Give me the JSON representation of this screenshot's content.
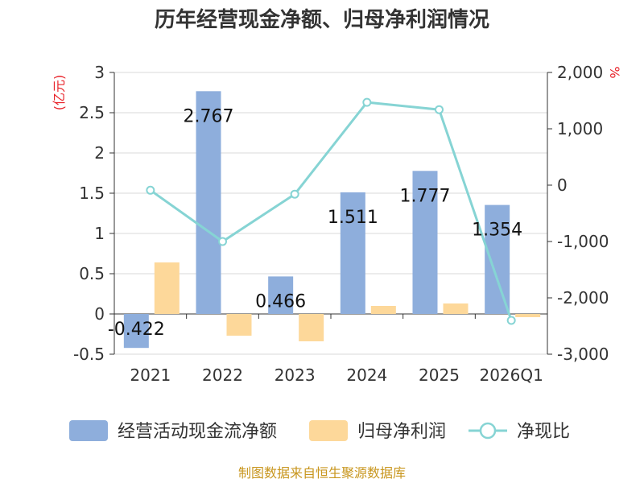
{
  "chart_data": {
    "type": "bar",
    "title": "历年经营现金净额、归母净利润情况",
    "categories": [
      "2021",
      "2022",
      "2023",
      "2024",
      "2025",
      "2026Q1"
    ],
    "left_axis": {
      "unit": "(亿元)",
      "range": [
        -0.5,
        3
      ],
      "ticks": [
        "3",
        "2.5",
        "2",
        "1.5",
        "1",
        "0.5",
        "0",
        "-0.5"
      ]
    },
    "right_axis": {
      "unit": "%",
      "range": [
        -3000,
        2000
      ],
      "ticks": [
        "2,000",
        "1,000",
        "0",
        "-1,000",
        "-2,000",
        "-3,000"
      ]
    },
    "series": [
      {
        "name": "经营活动现金流净额",
        "kind": "bar",
        "axis": "left",
        "color": "#8eaedc",
        "values": [
          -0.422,
          2.767,
          0.466,
          1.511,
          1.777,
          1.354
        ],
        "labels": [
          "-0.422",
          "2.767",
          "0.466",
          "1.511",
          "1.777",
          "1.354"
        ]
      },
      {
        "name": "归母净利润",
        "kind": "bar",
        "axis": "left",
        "color": "#fdd89a",
        "values": [
          0.64,
          -0.27,
          -0.34,
          0.1,
          0.13,
          -0.04
        ]
      },
      {
        "name": "净现比",
        "kind": "line",
        "axis": "right",
        "color": "#86d4d4",
        "values": [
          -90,
          -1000,
          -160,
          1470,
          1340,
          -2400
        ]
      }
    ],
    "grid": true,
    "legend_position": "bottom"
  },
  "footer": {
    "source": "制图数据来自恒生聚源数据库"
  }
}
